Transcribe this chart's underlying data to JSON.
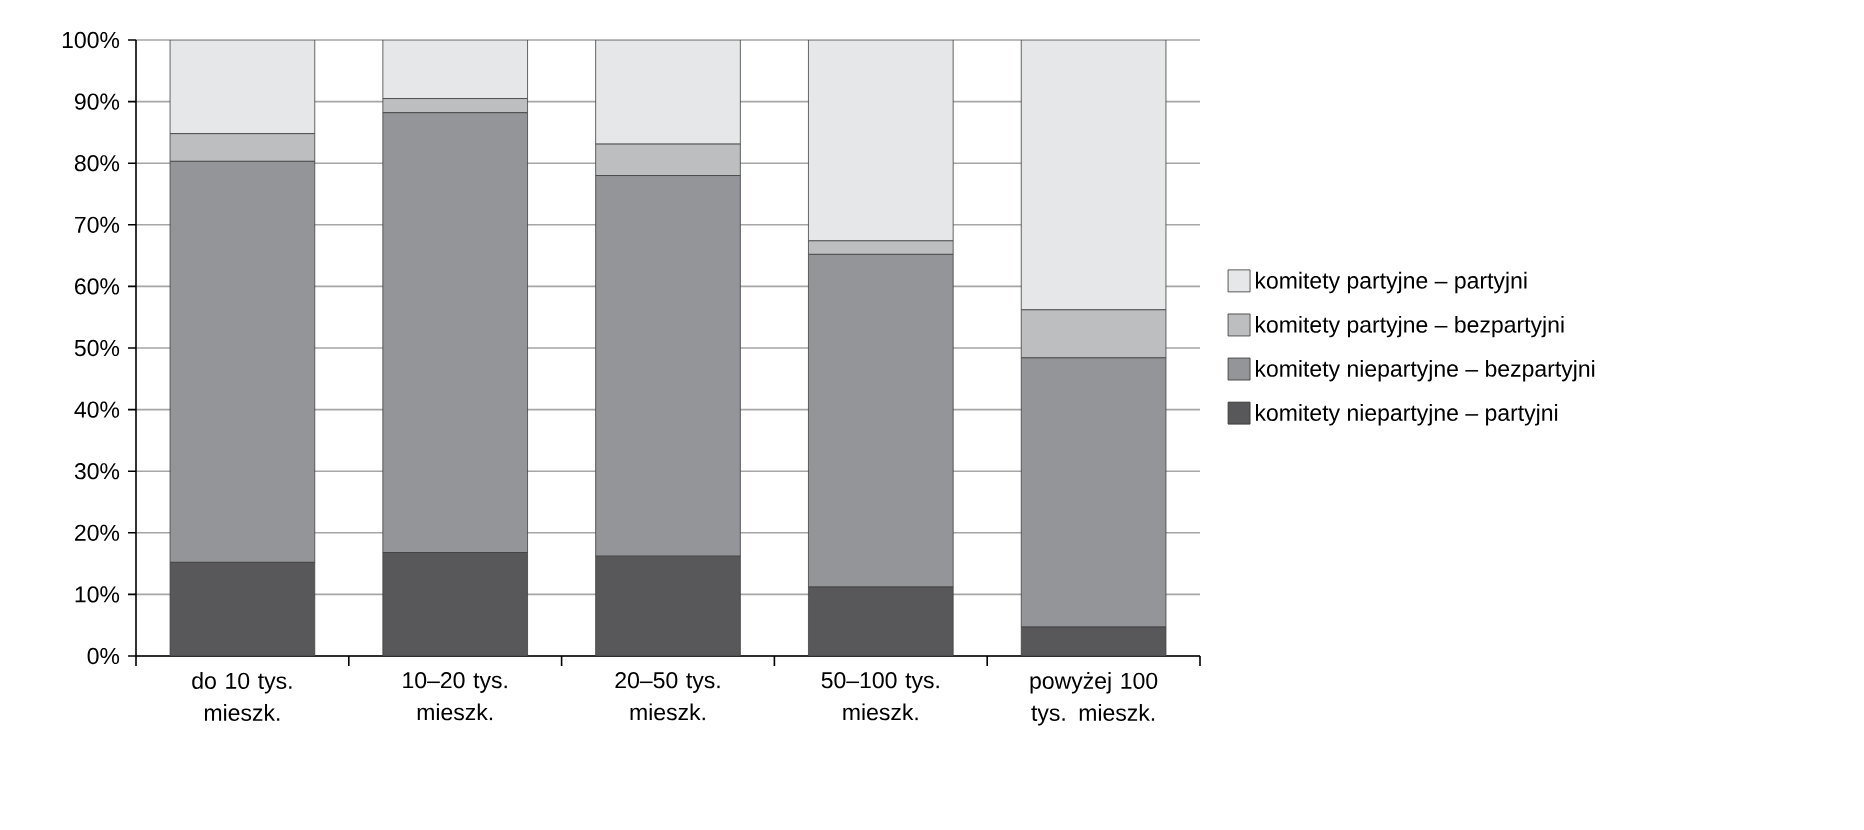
{
  "chart_data": {
    "type": "bar",
    "stacked": true,
    "categories": [
      "do 10 tys. mieszk.",
      "10–20 tys. mieszk.",
      "20–50 tys. mieszk.",
      "50–100 tys. mieszk.",
      "powyżej 100 tys. mieszk."
    ],
    "series": [
      {
        "name": "komitety niepartyjne – partyjni",
        "color": "#58585a",
        "values": [
          15.2,
          16.8,
          16.2,
          11.2,
          4.7
        ]
      },
      {
        "name": "komitety niepartyjne – bezpartyjni",
        "color": "#939598",
        "values": [
          65.1,
          71.4,
          61.8,
          54.0,
          43.7
        ]
      },
      {
        "name": "komitety partyjne – bezpartyjni",
        "color": "#bcbec0",
        "values": [
          4.5,
          2.3,
          5.1,
          2.2,
          7.8
        ]
      },
      {
        "name": "komitety partyjne – partyjni",
        "color": "#e6e7e8",
        "values": [
          15.2,
          9.5,
          16.9,
          32.6,
          43.8
        ]
      }
    ],
    "ylim": [
      0,
      100
    ],
    "yticks": [
      {
        "value": 0,
        "label": "0%"
      },
      {
        "value": 10,
        "label": "10%"
      },
      {
        "value": 20,
        "label": "20%"
      },
      {
        "value": 30,
        "label": "30%"
      },
      {
        "value": 40,
        "label": "40%"
      },
      {
        "value": 50,
        "label": "50%"
      },
      {
        "value": 60,
        "label": "60%"
      },
      {
        "value": 70,
        "label": "70%"
      },
      {
        "value": 80,
        "label": "80%"
      },
      {
        "value": 90,
        "label": "90%"
      },
      {
        "value": 100,
        "label": "100%"
      }
    ],
    "grid": "y",
    "legend": "right"
  }
}
